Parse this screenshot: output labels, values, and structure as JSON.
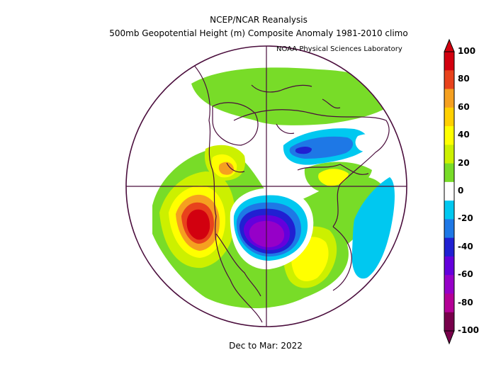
{
  "header": {
    "title": "NCEP/NCAR Reanalysis",
    "subtitle": "500mb Geopotential Height (m) Composite Anomaly 1981-2010 climo",
    "credit": "NOAA Physical Sciences Laboratory"
  },
  "footer": {
    "period": "Dec to Mar: 2022"
  },
  "colorbar": {
    "labels": [
      "100",
      "80",
      "60",
      "40",
      "20",
      "0",
      "-20",
      "-40",
      "-60",
      "-80",
      "-100"
    ],
    "colors": [
      "#d2000f",
      "#e8421c",
      "#f5a020",
      "#ffd000",
      "#ffff00",
      "#ccf000",
      "#78dc28",
      "#ffffff",
      "#00c8f0",
      "#1e78e6",
      "#2020d2",
      "#6400dc",
      "#9600c8",
      "#b40096",
      "#78004b"
    ]
  },
  "colors": {
    "map_outline": "#4a0d3c",
    "background": "#ffffff"
  }
}
